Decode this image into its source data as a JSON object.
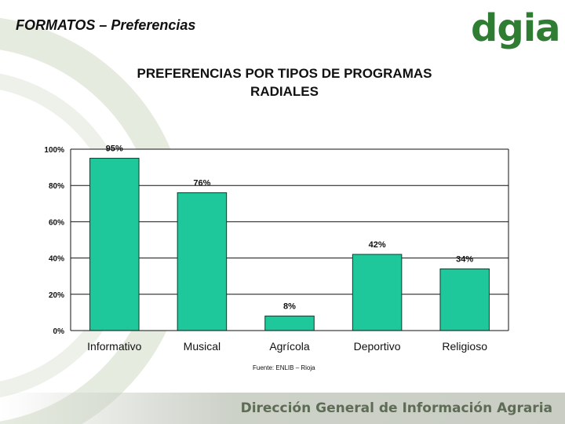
{
  "header": {
    "title": "FORMATOS – Preferencias"
  },
  "logo": {
    "text": "dgia"
  },
  "footer": {
    "text": "Dirección General de Información Agraria"
  },
  "source_note": "Fuente: ENLIB – Rioja",
  "colors": {
    "bar": "#1fc89a",
    "bar_stroke": "#0a3d2e",
    "logo": "#2e7d32",
    "footer_text": "#5e6b55"
  },
  "chart_data": {
    "type": "bar",
    "title": "PREFERENCIAS POR TIPOS DE PROGRAMAS\nRADIALES",
    "categories": [
      "Informativo",
      "Musical",
      "Agrícola",
      "Deportivo",
      "Religioso"
    ],
    "values": [
      95,
      76,
      8,
      42,
      34
    ],
    "data_labels": [
      "95%",
      "76%",
      "8%",
      "42%",
      "34%"
    ],
    "y_ticks": [
      "0%",
      "20%",
      "40%",
      "60%",
      "80%",
      "100%"
    ],
    "ylim": [
      0,
      100
    ],
    "xlabel": "",
    "ylabel": "",
    "grid": true,
    "legend": "none"
  }
}
